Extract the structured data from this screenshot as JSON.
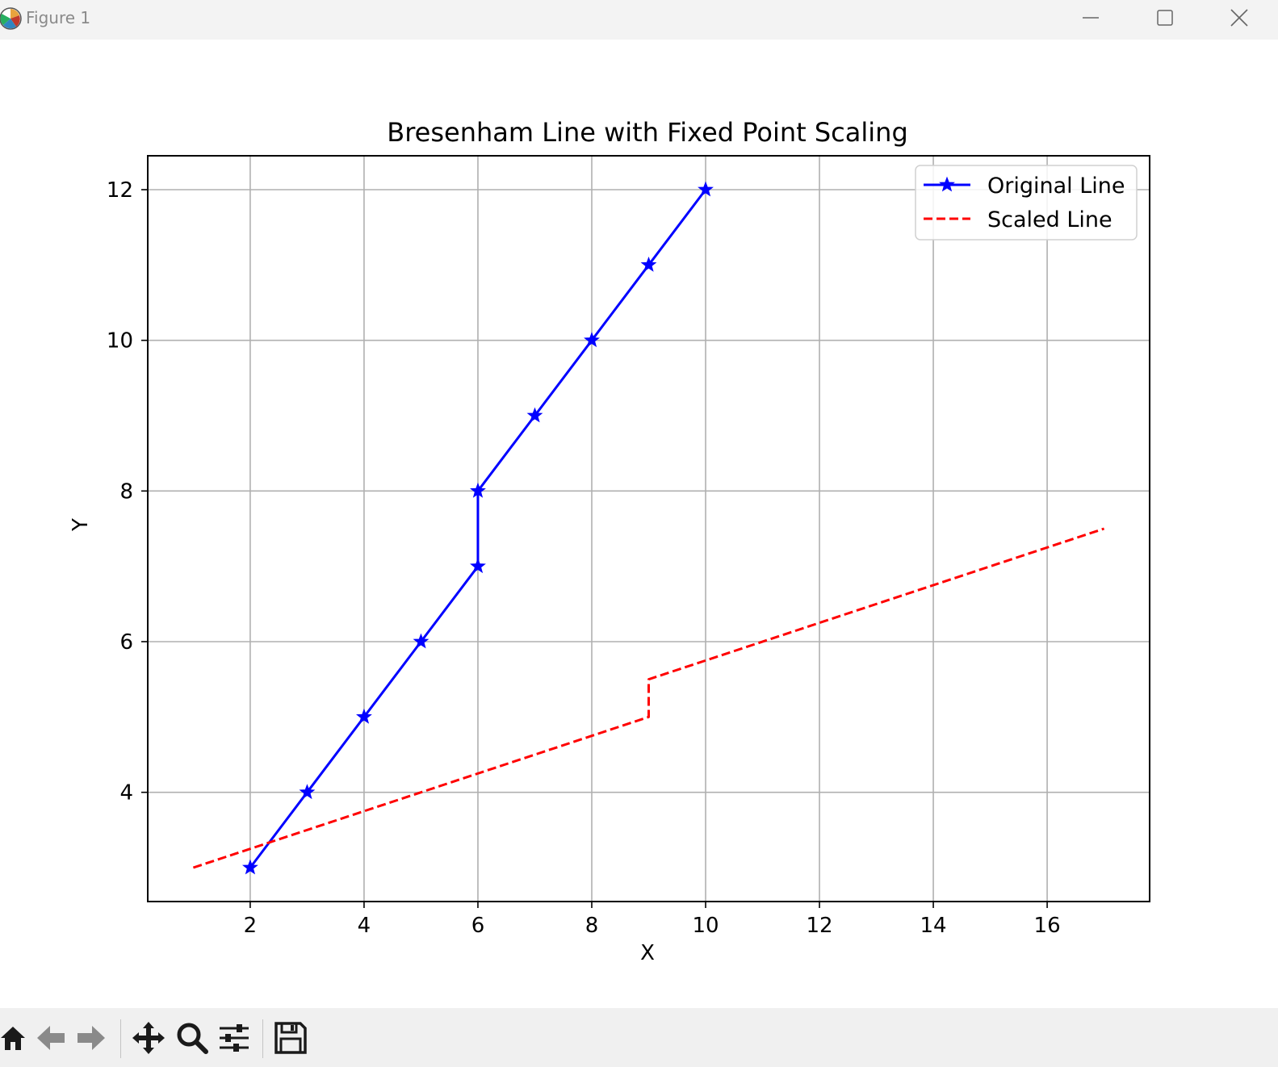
{
  "window": {
    "title": "Figure 1"
  },
  "toolbar": {
    "buttons": [
      "home-icon",
      "back-arrow-icon",
      "forward-arrow-icon",
      "pan-move-icon",
      "zoom-magnifier-icon",
      "configure-subplots-icon",
      "save-floppy-icon"
    ]
  },
  "colors": {
    "original": "#0000ff",
    "scaled": "#ff0000",
    "grid": "#b0b0b0"
  },
  "chart_data": {
    "type": "line",
    "title": "Bresenham Line with Fixed Point Scaling",
    "xlabel": "X",
    "ylabel": "Y",
    "xlim": [
      0.2,
      17.8
    ],
    "ylim": [
      2.55,
      12.45
    ],
    "xticks": [
      2,
      4,
      6,
      8,
      10,
      12,
      14,
      16
    ],
    "yticks": [
      4,
      6,
      8,
      10,
      12
    ],
    "grid": true,
    "legend_position": "top-right",
    "series": [
      {
        "name": "Original Line",
        "style": "solid",
        "marker": "star",
        "color": "#0000ff",
        "x": [
          2,
          3,
          4,
          5,
          6,
          6,
          7,
          8,
          9,
          10
        ],
        "y": [
          3,
          4,
          5,
          6,
          7,
          8,
          9,
          10,
          11,
          12
        ]
      },
      {
        "name": "Scaled Line",
        "style": "dashed",
        "marker": "none",
        "color": "#ff0000",
        "x": [
          1,
          9,
          9,
          17
        ],
        "y": [
          3,
          5,
          5.5,
          7.5
        ]
      }
    ]
  }
}
